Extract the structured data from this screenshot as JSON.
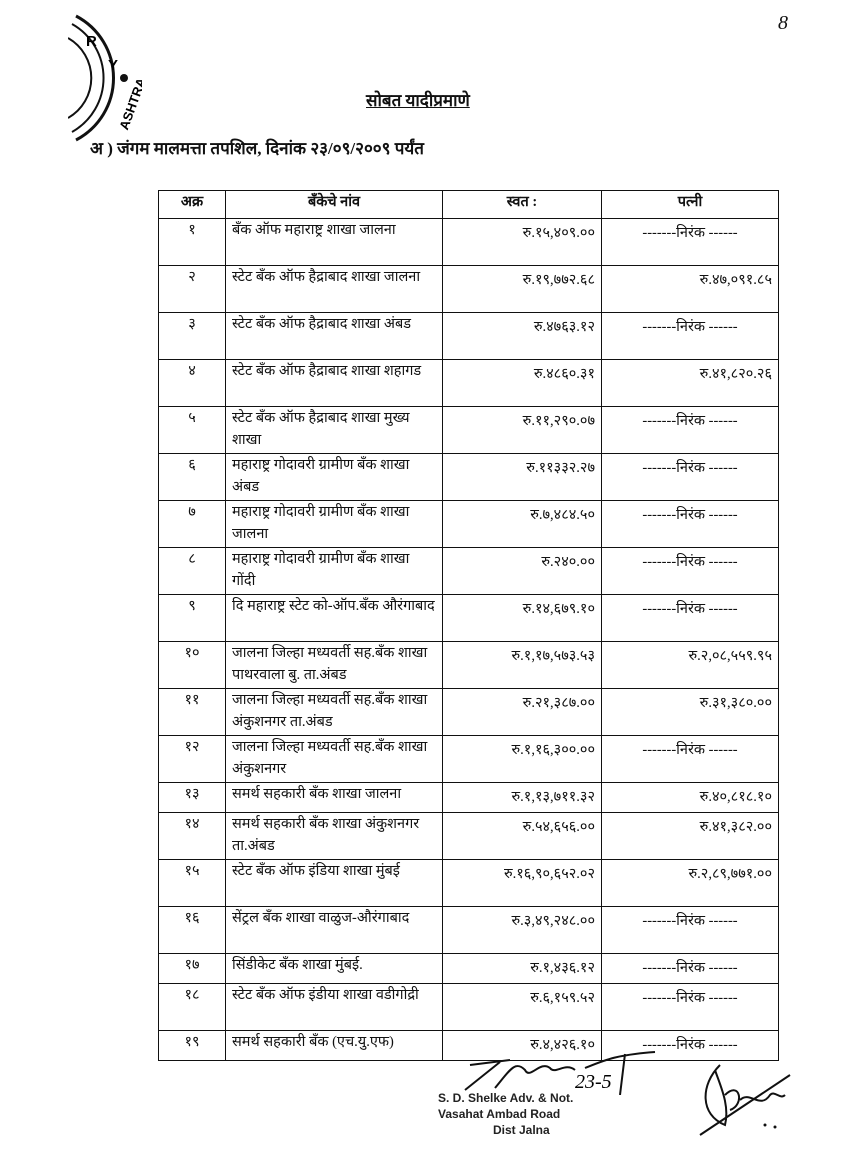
{
  "page_number": "8",
  "title": "सोबत यादीप्रमाणे",
  "subtitle": "अ ) जंगम मालमत्ता तपशिल, दिनांक २३/०९/२००९ पर्यंत",
  "table": {
    "headers": [
      "अक्र",
      "बँकेचे नांव",
      "स्वत :",
      "पत्नी"
    ],
    "rows": [
      {
        "sr": "१",
        "bank": "बँक ऑफ महाराष्ट्र शाखा जालना",
        "self": "रु.१५,४०९.००",
        "wife": "-------निरंक ------"
      },
      {
        "sr": "२",
        "bank": "स्टेट बँक ऑफ हैद्राबाद शाखा जालना",
        "self": "रु.१९,७७२.६८",
        "wife": "रु.४७,०९१.८५"
      },
      {
        "sr": "३",
        "bank": "स्टेट बँक ऑफ हैद्राबाद शाखा अंबड",
        "self": "रु.४७६३.१२",
        "wife": "-------निरंक ------"
      },
      {
        "sr": "४",
        "bank": "स्टेट बँक ऑफ हैद्राबाद शाखा शहागड",
        "self": "रु.४८६०.३१",
        "wife": "रु.४१,८२०.२६"
      },
      {
        "sr": "५",
        "bank": "स्टेट बँक ऑफ हैद्राबाद शाखा मुख्य शाखा",
        "self": "रु.११,२९०.०७",
        "wife": "-------निरंक ------"
      },
      {
        "sr": "६",
        "bank": "महाराष्ट्र गोदावरी ग्रामीण बँक शाखा अंबड",
        "self": "रु.११३३२.२७",
        "wife": "-------निरंक ------"
      },
      {
        "sr": "७",
        "bank": "महाराष्ट्र गोदावरी ग्रामीण बँक शाखा जालना",
        "self": "रु.७,४८४.५०",
        "wife": "-------निरंक ------"
      },
      {
        "sr": "८",
        "bank": "महाराष्ट्र गोदावरी ग्रामीण बँक शाखा गोंदी",
        "self": "रु.२४०.००",
        "wife": "-------निरंक ------"
      },
      {
        "sr": "९",
        "bank": "दि महाराष्ट्र स्टेट को-ऑप.बँक औरंगाबाद",
        "self": "रु.१४,६७९.१०",
        "wife": "-------निरंक ------"
      },
      {
        "sr": "१०",
        "bank": "जालना जिल्हा मध्यवर्ती सह.बँक शाखा पाथरवाला बु. ता.अंबड",
        "self": "रु.१,१७,५७३.५३",
        "wife": "रु.२,०८,५५९.९५"
      },
      {
        "sr": "११",
        "bank": "जालना जिल्हा मध्यवर्ती सह.बँक शाखा अंकुशनगर ता.अंबड",
        "self": "रु.२१,३८७.००",
        "wife": "रु.३१,३८०.००"
      },
      {
        "sr": "१२",
        "bank": "जालना जिल्हा मध्यवर्ती सह.बँक शाखा अंकुशनगर",
        "self": "रु.१,१६,३००.००",
        "wife": "-------निरंक ------"
      },
      {
        "sr": "१३",
        "bank": "समर्थ सहकारी बँक शाखा जालना",
        "self": "रु.१,१३,७११.३२",
        "wife": "रु.४०,८१८.१०"
      },
      {
        "sr": "१४",
        "bank": "समर्थ सहकारी बँक शाखा अंकुशनगर ता.अंबड",
        "self": "रु.५४,६५६.००",
        "wife": "रु.४१,३८२.००"
      },
      {
        "sr": "१५",
        "bank": "स्टेट बँक ऑफ इंडिया शाखा मुंबई",
        "self": "रु.१६,९०,६५२.०२",
        "wife": "रु.२,८९,७७१.००"
      },
      {
        "sr": "१६",
        "bank": "सेंट्रल बँक शाखा वाळुज-औरंगाबाद",
        "self": "रु.३,४९,२४८.००",
        "wife": "-------निरंक ------"
      },
      {
        "sr": "१७",
        "bank": "सिंडीकेट बँक शाखा मुंबई.",
        "self": "रु.१,४३६.१२",
        "wife": "-------निरंक ------"
      },
      {
        "sr": "१८",
        "bank": "स्टेट बँक ऑफ इंडीया शाखा वडीगोद्री",
        "self": "रु.६,१५९.५२",
        "wife": "-------निरंक ------"
      },
      {
        "sr": "१९",
        "bank": "समर्थ सहकारी बँक (एच.यु.एफ)",
        "self": "रु.४,४२६.१०",
        "wife": "-------निरंक ------"
      }
    ]
  },
  "seal_text": "...RY • ...ASHTRA",
  "stamp": {
    "line1": "S. D. Shelke Adv. & Not.",
    "line2": "Vasahat Ambad Road",
    "line3": "Dist Jalna"
  },
  "signature_date": "23-5"
}
